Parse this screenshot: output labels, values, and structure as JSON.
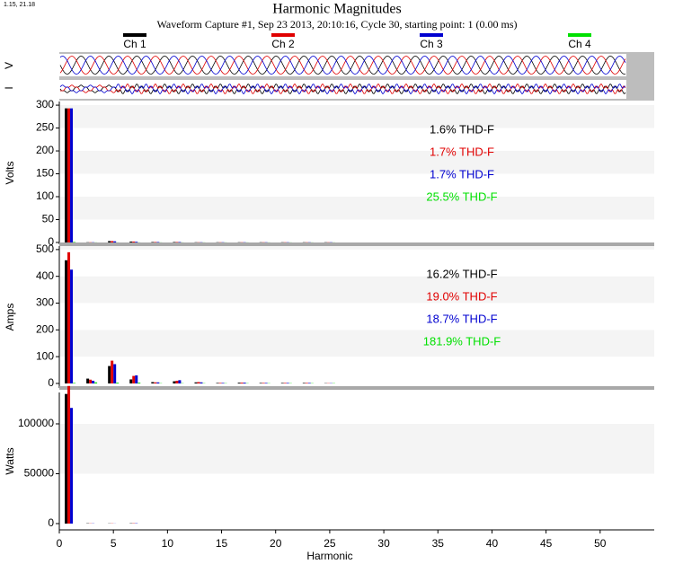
{
  "corner_label": "1.15, 21.18",
  "waveform_labels": [
    "V",
    "I"
  ],
  "chart_data": [
    {
      "type": "bar",
      "title": "Harmonic Magnitudes",
      "subtitle": "Waveform Capture #1, Sep 23 2013, 20:10:16, Cycle 30,  starting point: 1  (0.00 ms)",
      "ylabel": "Volts",
      "x": [
        1,
        3,
        5,
        7,
        9,
        11,
        13,
        15,
        17,
        19,
        21,
        23,
        25
      ],
      "series": [
        {
          "name": "Ch 1",
          "color": "#000000",
          "values": [
            293,
            0.5,
            3,
            2,
            1,
            1,
            0.5,
            0.5,
            0.5,
            0.5,
            0.5,
            0.5,
            0.5
          ]
        },
        {
          "name": "Ch 2",
          "color": "#e00000",
          "values": [
            293,
            0.5,
            3,
            2,
            1,
            1,
            0.5,
            0.5,
            0.5,
            0.5,
            0.5,
            0.5,
            0.5
          ]
        },
        {
          "name": "Ch 3",
          "color": "#0000d0",
          "values": [
            293,
            0.5,
            2.5,
            1.5,
            1,
            1,
            0.5,
            0.5,
            0.5,
            0.5,
            0.5,
            0.5,
            0.5
          ]
        },
        {
          "name": "Ch 4",
          "color": "#00e000",
          "values": [
            1,
            0.2,
            0.2,
            0.2,
            0.2,
            0.2,
            0.2,
            0.2,
            0.2,
            0.2,
            0.2,
            0.2,
            0.2
          ]
        }
      ],
      "ylim": [
        -4,
        308
      ],
      "yticks": [
        0,
        50,
        100,
        150,
        200,
        250,
        300
      ],
      "xlim": [
        0,
        55
      ],
      "annotations": [
        {
          "text": "1.6% THD-F",
          "color": "#000000"
        },
        {
          "text": "1.7% THD-F",
          "color": "#e00000"
        },
        {
          "text": "1.7% THD-F",
          "color": "#0000d0"
        },
        {
          "text": "25.5% THD-F",
          "color": "#00e000"
        }
      ]
    },
    {
      "type": "bar",
      "ylabel": "Amps",
      "x": [
        1,
        3,
        5,
        7,
        9,
        11,
        13,
        15,
        17,
        19,
        21,
        23,
        25
      ],
      "series": [
        {
          "color": "#000000",
          "values": [
            460,
            18,
            65,
            15,
            5,
            8,
            4,
            2,
            3,
            2,
            2,
            2,
            1
          ]
        },
        {
          "color": "#e00000",
          "values": [
            490,
            14,
            85,
            28,
            4,
            10,
            5,
            2,
            3,
            2,
            2,
            2,
            1
          ]
        },
        {
          "color": "#0000d0",
          "values": [
            425,
            10,
            72,
            30,
            4,
            12,
            4,
            2,
            3,
            2,
            2,
            2,
            1
          ]
        },
        {
          "color": "#00e000",
          "values": [
            2,
            4,
            3,
            3,
            1,
            1,
            1,
            1,
            1,
            1,
            1,
            1,
            1
          ]
        }
      ],
      "ylim": [
        -17,
        513
      ],
      "yticks": [
        0,
        100,
        200,
        300,
        400,
        500
      ],
      "xlim": [
        0,
        55
      ],
      "annotations": [
        {
          "text": "16.2% THD-F",
          "color": "#000000"
        },
        {
          "text": "19.0% THD-F",
          "color": "#e00000"
        },
        {
          "text": "18.7% THD-F",
          "color": "#0000d0"
        },
        {
          "text": "181.9% THD-F",
          "color": "#00e000"
        }
      ]
    },
    {
      "type": "bar",
      "ylabel": "Watts",
      "xlabel": "Harmonic",
      "x": [
        1,
        3,
        5,
        7,
        9,
        11,
        13,
        15,
        17,
        19,
        21,
        23,
        25
      ],
      "series": [
        {
          "color": "#000000",
          "values": [
            130000,
            300,
            200,
            300,
            0,
            0,
            0,
            0,
            0,
            0,
            0,
            0,
            0
          ]
        },
        {
          "color": "#e00000",
          "values": [
            138000,
            200,
            200,
            300,
            0,
            0,
            0,
            0,
            0,
            0,
            0,
            0,
            0
          ]
        },
        {
          "color": "#0000d0",
          "values": [
            116000,
            200,
            100,
            300,
            0,
            0,
            0,
            0,
            0,
            0,
            0,
            0,
            0
          ]
        },
        {
          "color": "#00e000",
          "values": [
            0,
            0,
            0,
            0,
            0,
            0,
            0,
            0,
            0,
            0,
            0,
            0,
            0
          ]
        }
      ],
      "ylim": [
        -6300,
        131500
      ],
      "yticks": [
        0,
        50000,
        100000
      ],
      "xlim": [
        0,
        55
      ],
      "xticks": [
        0,
        5,
        10,
        15,
        20,
        25,
        30,
        35,
        40,
        45,
        50
      ]
    }
  ]
}
